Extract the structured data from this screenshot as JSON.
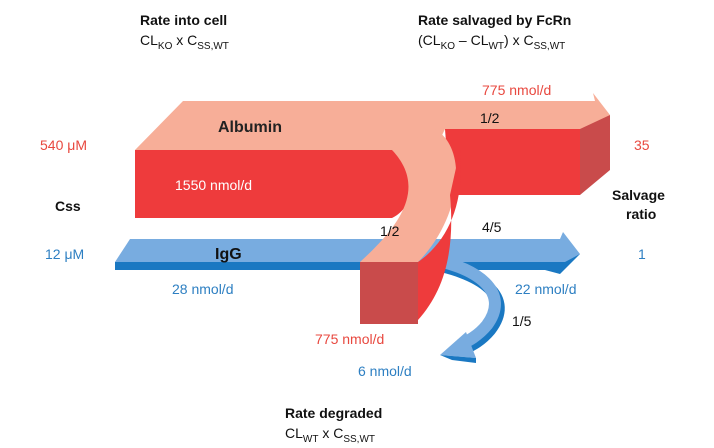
{
  "colors": {
    "albumin_top": "#f7ae98",
    "albumin_front": "#ee3b3c",
    "albumin_dark": "#c94b4b",
    "igg_top": "#78ace0",
    "igg_front": "#1a78c2",
    "red_text": "#e8483f",
    "blue_text": "#2d7fc2",
    "black_text": "#111111"
  },
  "headers": {
    "rate_into_cell": {
      "title": "Rate into cell",
      "formula_a": "CL",
      "formula_a_sub": "KO",
      "formula_mid": " x C",
      "formula_b_sub": "SS,WT"
    },
    "rate_salvaged": {
      "title": "Rate salvaged by FcRn",
      "formula_open": "(CL",
      "formula_sub1": "KO",
      "formula_dash": " – CL",
      "formula_sub2": "WT",
      "formula_mid": ") x C",
      "formula_sub3": "SS,WT"
    },
    "rate_degraded": {
      "title": "Rate degraded",
      "formula_a": "CL",
      "formula_a_sub": "WT",
      "formula_mid": " x C",
      "formula_b_sub": "SS,WT"
    }
  },
  "left_labels": {
    "albumin_conc": "540 μM",
    "css": "Css",
    "igg_conc": "12 μM"
  },
  "right_labels": {
    "albumin_ratio": "35",
    "salvage_ratio_line1": "Salvage",
    "salvage_ratio_line2": "ratio",
    "igg_ratio": "1"
  },
  "albumin": {
    "name": "Albumin",
    "into_cell": "1550 nmol/d",
    "salvaged": "775 nmol/d",
    "degraded": "775 nmol/d",
    "fraction_salvaged": "1/2",
    "fraction_degraded": "1/2"
  },
  "igg": {
    "name": "IgG",
    "into_cell": "28 nmol/d",
    "salvaged": "22 nmol/d",
    "degraded": "6 nmol/d",
    "fraction_salvaged": "4/5",
    "fraction_degraded": "1/5"
  }
}
